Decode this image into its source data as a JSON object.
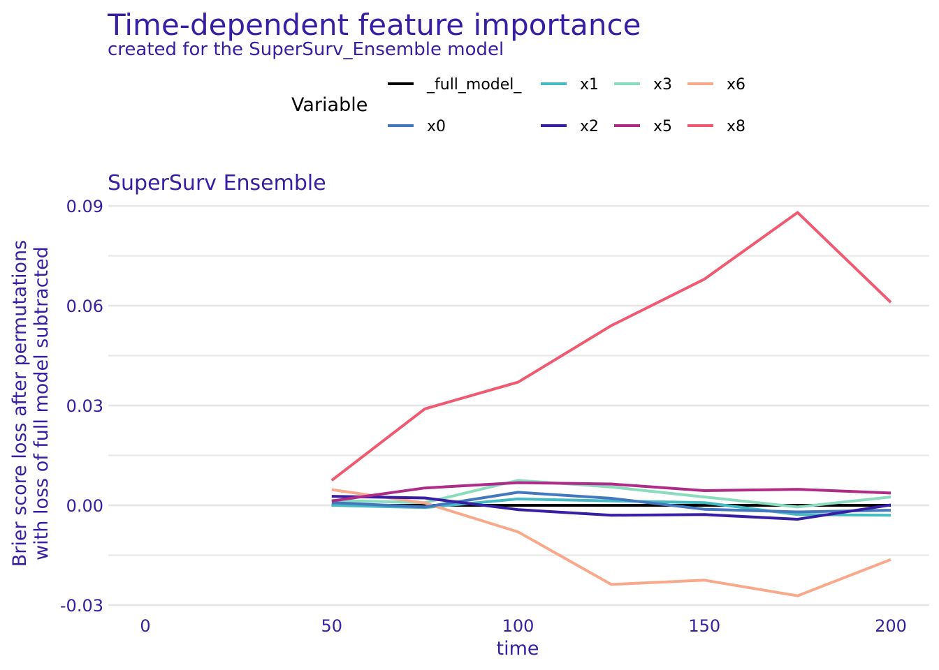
{
  "chart_data": {
    "type": "line",
    "title": "Time-dependent feature importance",
    "subtitle": "created for the SuperSurv_Ensemble model",
    "panel_title": "SuperSurv  Ensemble",
    "xlabel": "time",
    "ylabel": [
      "Brier score loss after permutations",
      "with loss of full model subtracted"
    ],
    "xlim": [
      0,
      200
    ],
    "ylim": [
      -0.03,
      0.09
    ],
    "x_ticks": [
      0,
      50,
      100,
      150,
      200
    ],
    "x_tick_labels": [
      "0",
      "50",
      "100",
      "150",
      "200"
    ],
    "y_ticks": [
      -0.03,
      0,
      0.03,
      0.06,
      0.09
    ],
    "y_tick_labels": [
      "-0.03",
      "0.00",
      "0.03",
      "0.06",
      "0.09"
    ],
    "y_minor_ticks": [
      -0.015,
      0.015,
      0.045,
      0.075
    ],
    "grid": true,
    "legend": {
      "title": "Variable",
      "position": "top",
      "columns": [
        [
          "_full_model_",
          "x0"
        ],
        [
          "x1",
          "x2"
        ],
        [
          "x3",
          "x5"
        ],
        [
          "x6",
          "x8"
        ]
      ]
    },
    "x": [
      50,
      75,
      100,
      125,
      150,
      175,
      200
    ],
    "series": [
      {
        "name": "_full_model_",
        "color": "#000000",
        "values": [
          0,
          0,
          0,
          0,
          0,
          0,
          0
        ]
      },
      {
        "name": "x1",
        "color": "#46bac2",
        "values": [
          0.0,
          -0.0007,
          0.0019,
          0.0013,
          0.0008,
          -0.0028,
          -0.003
        ]
      },
      {
        "name": "x3",
        "color": "#8bdcbe",
        "values": [
          0.0015,
          0.0008,
          0.0075,
          0.0055,
          0.0025,
          -0.0005,
          0.0025
        ]
      },
      {
        "name": "x6",
        "color": "#f9a98b",
        "values": [
          0.0047,
          0.0007,
          -0.008,
          -0.0238,
          -0.0225,
          -0.0272,
          -0.0163
        ]
      },
      {
        "name": "x0",
        "color": "#4378bf",
        "values": [
          0.0008,
          -0.0005,
          0.0039,
          0.0021,
          -0.0012,
          -0.002,
          -0.0015
        ]
      },
      {
        "name": "x2",
        "color": "#371ea3",
        "values": [
          0.0027,
          0.0022,
          -0.0013,
          -0.003,
          -0.0028,
          -0.0042,
          0.0001
        ]
      },
      {
        "name": "x5",
        "color": "#ae2c87",
        "values": [
          0.0013,
          0.0052,
          0.0068,
          0.0064,
          0.0044,
          0.0048,
          0.0037
        ]
      },
      {
        "name": "x8",
        "color": "#f05a71",
        "values": [
          0.0075,
          0.029,
          0.037,
          0.054,
          0.068,
          0.088,
          0.061
        ]
      }
    ]
  }
}
